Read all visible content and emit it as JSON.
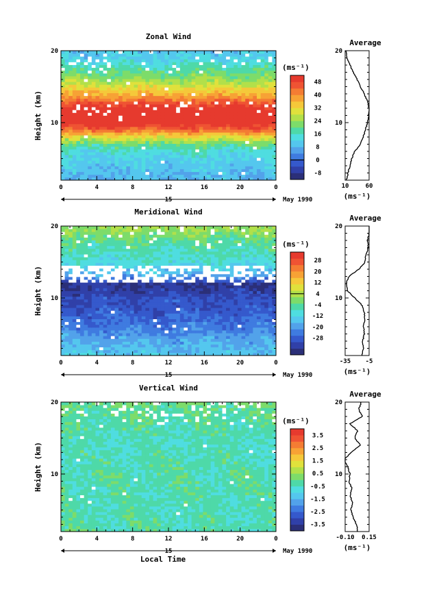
{
  "chart_data": [
    {
      "type": "heatmap",
      "title": "Zonal Wind",
      "ylabel": "Height (km)",
      "xlim": [
        0,
        24
      ],
      "ylim": [
        2,
        20
      ],
      "x_ticks": [
        "0",
        "4",
        "8",
        "12",
        "16",
        "20",
        "0"
      ],
      "x_ticks_values": [
        0,
        4,
        8,
        12,
        16,
        20,
        24
      ],
      "y_ticks": [
        "20",
        "10"
      ],
      "y_ticks_values": [
        20,
        10
      ],
      "day_label": "15",
      "month_label": "May 1990",
      "colorbar": {
        "unit": "(ms⁻¹)",
        "range": [
          -12,
          52
        ],
        "labels": [
          "48",
          "40",
          "32",
          "24",
          "16",
          "8",
          "0",
          "-8"
        ],
        "label_values": [
          48,
          40,
          32,
          24,
          16,
          8,
          0,
          -8
        ],
        "contour_at": 0
      },
      "field": {
        "heights": [
          2,
          4,
          6,
          7,
          8,
          9,
          10,
          11,
          12,
          13,
          14,
          15,
          16,
          17,
          18,
          19,
          20
        ],
        "values": [
          8,
          10,
          14,
          20,
          30,
          44,
          52,
          54,
          52,
          44,
          36,
          30,
          24,
          20,
          16,
          12,
          10
        ]
      },
      "profile": {
        "title": "Average",
        "xlim": [
          10,
          60
        ],
        "x_ticks": [
          "10",
          "60"
        ],
        "x_ticks_values": [
          10,
          60
        ],
        "y_ticks": [
          "20",
          "10"
        ],
        "y_ticks_values": [
          20,
          10
        ],
        "xlabel": "(ms⁻¹)",
        "heights": [
          2,
          3,
          4,
          5,
          6,
          7,
          8,
          9,
          10,
          11,
          12,
          13,
          14,
          15,
          16,
          17,
          18,
          19,
          20
        ],
        "values": [
          13,
          16,
          20,
          24,
          30,
          42,
          48,
          52,
          57,
          59,
          60,
          56,
          50,
          42,
          35,
          27,
          20,
          14,
          11
        ]
      }
    },
    {
      "type": "heatmap",
      "title": "Meridional Wind",
      "ylabel": "Height (km)",
      "xlim": [
        0,
        24
      ],
      "ylim": [
        2,
        20
      ],
      "x_ticks": [
        "0",
        "4",
        "8",
        "12",
        "16",
        "20",
        "0"
      ],
      "x_ticks_values": [
        0,
        4,
        8,
        12,
        16,
        20,
        24
      ],
      "y_ticks": [
        "20",
        "10"
      ],
      "y_ticks_values": [
        20,
        10
      ],
      "day_label": "15",
      "month_label": "May 1990",
      "colorbar": {
        "unit": "(ms⁻¹)",
        "range": [
          -40,
          34
        ],
        "labels": [
          "28",
          "20",
          "12",
          "4",
          "-4",
          "-12",
          "-20",
          "-28"
        ],
        "label_values": [
          28,
          20,
          12,
          4,
          -4,
          -12,
          -20,
          -28
        ],
        "contour_at": 4
      },
      "field": {
        "heights": [
          2,
          4,
          6,
          8,
          9,
          10,
          11,
          12,
          13,
          14,
          15,
          16,
          17,
          18,
          19,
          20
        ],
        "values": [
          -14,
          -18,
          -24,
          -28,
          -30,
          -30,
          -34,
          -36,
          -20,
          -14,
          -10,
          -8,
          -6,
          -4,
          0,
          2
        ]
      },
      "profile": {
        "title": "Average",
        "xlim": [
          -35,
          -5
        ],
        "x_ticks": [
          "-35",
          "-5"
        ],
        "x_ticks_values": [
          -35,
          -5
        ],
        "y_ticks": [
          "20",
          "10"
        ],
        "y_ticks_values": [
          20,
          10
        ],
        "xlabel": "(ms⁻¹)",
        "heights": [
          2,
          3,
          4,
          5,
          6,
          7,
          8,
          9,
          10,
          11,
          12,
          13,
          14,
          15,
          16,
          17,
          18,
          19,
          20
        ],
        "values": [
          -14,
          -12,
          -13,
          -11,
          -12,
          -10,
          -11,
          -14,
          -23,
          -32,
          -34,
          -30,
          -18,
          -10,
          -9,
          -6,
          -7,
          -5,
          -3
        ]
      }
    },
    {
      "type": "heatmap",
      "title": "Vertical Wind",
      "ylabel": "Height (km)",
      "xlabel": "Local Time",
      "xlim": [
        0,
        24
      ],
      "ylim": [
        2,
        20
      ],
      "x_ticks": [
        "0",
        "4",
        "8",
        "12",
        "16",
        "20",
        "0"
      ],
      "x_ticks_values": [
        0,
        4,
        8,
        12,
        16,
        20,
        24
      ],
      "y_ticks": [
        "20",
        "10"
      ],
      "y_ticks_values": [
        20,
        10
      ],
      "day_label": "15",
      "month_label": "May 1990",
      "colorbar": {
        "unit": "(ms⁻¹)",
        "range": [
          -4.0,
          4.0
        ],
        "labels": [
          "3.5",
          "2.5",
          "1.5",
          "0.5",
          "-0.5",
          "-1.5",
          "-2.5",
          "-3.5"
        ],
        "label_values": [
          3.5,
          2.5,
          1.5,
          0.5,
          -0.5,
          -1.5,
          -2.5,
          -3.5
        ],
        "contour_at": null
      },
      "field": {
        "heights": [
          2,
          6,
          10,
          14,
          18,
          20
        ],
        "values": [
          -0.3,
          -0.4,
          -0.3,
          -0.5,
          -0.2,
          0.0
        ]
      },
      "profile": {
        "title": "Average",
        "xlim": [
          -0.1,
          0.15
        ],
        "x_ticks": [
          "-0.10",
          "0.15"
        ],
        "x_ticks_values": [
          -0.1,
          0.15
        ],
        "y_ticks": [
          "20",
          "10"
        ],
        "y_ticks_values": [
          20,
          10
        ],
        "xlabel": "(ms⁻¹)",
        "heights": [
          2,
          3,
          4,
          5,
          6,
          7,
          8,
          9,
          10,
          11,
          12,
          13,
          14,
          15,
          16,
          17,
          18,
          19,
          20
        ],
        "values": [
          0.03,
          0.02,
          -0.02,
          -0.04,
          -0.02,
          -0.05,
          -0.03,
          -0.06,
          -0.05,
          -0.07,
          -0.11,
          -0.04,
          0.06,
          0.0,
          0.03,
          -0.05,
          0.08,
          0.04,
          0.07
        ]
      }
    }
  ]
}
